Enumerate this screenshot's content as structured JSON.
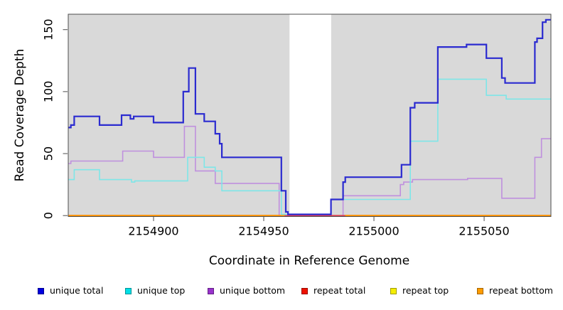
{
  "figure": {
    "background": "#ffffff",
    "plot_background": "#d9d9d9",
    "box_color": "#4d4d4d"
  },
  "chart_data": {
    "type": "line",
    "subtype": "step-coverage-plot",
    "title": "",
    "xlabel": "Coordinate in Reference Genome",
    "ylabel": "Read Coverage Depth",
    "xlim": [
      2154861.3,
      2155080.3
    ],
    "ylim": [
      0,
      162
    ],
    "x_ticks": [
      2154900,
      2154950,
      2155000,
      2155050
    ],
    "y_ticks": [
      0,
      50,
      100,
      150
    ],
    "grid": "off",
    "masked_region": {
      "x_start": 2154961.7,
      "x_end": 2154980.6,
      "color": "#ffffff"
    },
    "series": [
      {
        "name": "repeat-top",
        "label": "repeat top",
        "color": "#f0e800",
        "width": 1.6,
        "segments": [
          [
            [
              2154861.3,
              0
            ],
            [
              2155080.3,
              0
            ]
          ]
        ]
      },
      {
        "name": "unique-bottom",
        "label": "unique bottom",
        "color": "#bf90de",
        "width": 1.6,
        "segments": [
          [
            [
              2154861.3,
              42
            ],
            [
              2154862.5,
              44
            ],
            [
              2154886,
              52
            ],
            [
              2154900,
              47
            ],
            [
              2154914,
              72
            ],
            [
              2154919,
              36
            ],
            [
              2154928,
              26
            ],
            [
              2154957,
              0
            ],
            [
              2154986,
              16
            ],
            [
              2155012,
              25
            ],
            [
              2155013.5,
              27
            ],
            [
              2155017.5,
              29
            ],
            [
              2155042.5,
              30
            ],
            [
              2155058,
              14
            ],
            [
              2155073,
              47
            ],
            [
              2155076,
              62
            ],
            [
              2155080.3,
              62
            ]
          ]
        ]
      },
      {
        "name": "repeat-total",
        "label": "repeat total",
        "color": "#de4055",
        "width": 1.6,
        "segments": [
          [
            [
              2154861.3,
              0
            ],
            [
              2155080.3,
              0
            ]
          ]
        ]
      },
      {
        "name": "repeat-bottom",
        "label": "repeat bottom",
        "color": "#ff9300",
        "width": 2,
        "segments": [
          [
            [
              2154861.3,
              0
            ],
            [
              2154959.5,
              0
            ]
          ],
          [
            [
              2154987,
              0
            ],
            [
              2155080.3,
              0
            ]
          ]
        ]
      },
      {
        "name": "unique-top",
        "label": "unique top",
        "color": "#7ee6e8",
        "width": 1.6,
        "segments": [
          [
            [
              2154861.3,
              29
            ],
            [
              2154864,
              37
            ],
            [
              2154875.5,
              29
            ],
            [
              2154890,
              27
            ],
            [
              2154891.5,
              28
            ],
            [
              2154915.5,
              47
            ],
            [
              2154923,
              39
            ],
            [
              2154928,
              36
            ],
            [
              2154931,
              20
            ],
            [
              2154958,
              1
            ],
            [
              2154980.5,
              13
            ],
            [
              2155016.5,
              60
            ],
            [
              2155029,
              110
            ],
            [
              2155051,
              97
            ],
            [
              2155060,
              94
            ],
            [
              2155080.3,
              94
            ]
          ]
        ]
      },
      {
        "name": "unique-total",
        "label": "unique total",
        "color": "#2b2bd0",
        "width": 2.2,
        "segments": [
          [
            [
              2154861.3,
              71
            ],
            [
              2154862.5,
              73
            ],
            [
              2154864,
              80
            ],
            [
              2154875.5,
              73
            ],
            [
              2154885.5,
              81
            ],
            [
              2154889.5,
              78
            ],
            [
              2154891,
              80
            ],
            [
              2154900,
              75
            ],
            [
              2154913.5,
              100
            ],
            [
              2154916,
              119
            ],
            [
              2154919,
              82
            ],
            [
              2154923,
              76
            ],
            [
              2154928,
              66
            ],
            [
              2154930,
              58
            ],
            [
              2154931,
              47
            ],
            [
              2154958,
              20
            ],
            [
              2154960,
              3
            ],
            [
              2154961,
              1
            ],
            [
              2154980.5,
              13
            ],
            [
              2154986,
              27
            ],
            [
              2154987,
              31
            ],
            [
              2155012.5,
              41
            ],
            [
              2155016.5,
              87
            ],
            [
              2155018.5,
              91
            ],
            [
              2155029,
              136
            ],
            [
              2155042,
              138
            ],
            [
              2155051,
              127
            ],
            [
              2155058,
              111
            ],
            [
              2155059.5,
              107
            ],
            [
              2155073,
              140
            ],
            [
              2155074,
              143
            ],
            [
              2155076.5,
              156
            ],
            [
              2155078,
              158
            ],
            [
              2155080.3,
              158
            ]
          ]
        ]
      }
    ],
    "legend": {
      "position": "bottom",
      "entries": [
        {
          "label": "unique total",
          "color": "#0000e0"
        },
        {
          "label": "unique top",
          "color": "#00e0e6"
        },
        {
          "label": "unique bottom",
          "color": "#9932cc"
        },
        {
          "label": "repeat total",
          "color": "#ee1100"
        },
        {
          "label": "repeat top",
          "color": "#f5ee00"
        },
        {
          "label": "repeat bottom",
          "color": "#ff9c00"
        }
      ]
    }
  }
}
